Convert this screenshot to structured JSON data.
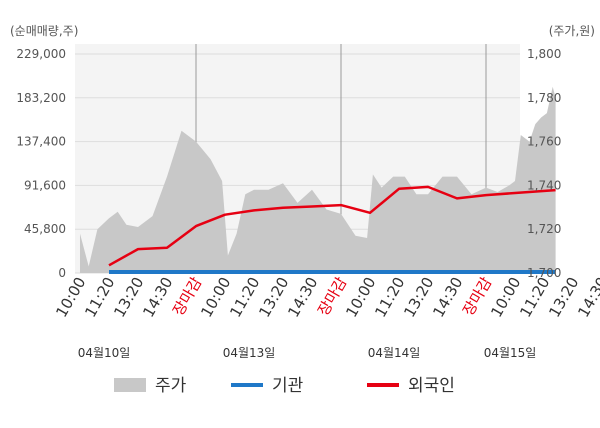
{
  "chart_data": {
    "type": "area+line",
    "left_axis": {
      "label": "(순매매량,주)",
      "ticks": [
        "229,000",
        "183,200",
        "137,400",
        "91,600",
        "45,800",
        "0"
      ],
      "tick_values": [
        229000,
        183200,
        137400,
        91600,
        45800,
        0
      ],
      "range": [
        0,
        229000
      ]
    },
    "right_axis": {
      "label": "(주가,원)",
      "ticks": [
        "1,800",
        "1,780",
        "1,760",
        "1,740",
        "1,720",
        "1,700"
      ],
      "tick_values": [
        1800,
        1780,
        1760,
        1740,
        1720,
        1700
      ],
      "range": [
        1700,
        1800
      ]
    },
    "x_tick_labels": [
      "10:00",
      "11:20",
      "13:20",
      "14:30",
      "장마감",
      "10:00",
      "11:20",
      "13:20",
      "14:30",
      "장마감",
      "10:00",
      "11:20",
      "13:20",
      "14:30",
      "장마감",
      "10:00",
      "11:20",
      "13:20",
      "14:30"
    ],
    "close_label": "장마감",
    "dates": [
      "04월10일",
      "04월13일",
      "04월14일",
      "04월15일"
    ],
    "day_boundaries": [
      4,
      9,
      14
    ],
    "grid": true,
    "legend_position": "bottom",
    "series": [
      {
        "name": "주가",
        "axis": "right",
        "style": "area",
        "color": "#c8c8c8",
        "x": [
          0,
          0.3,
          0.6,
          1,
          1.3,
          1.6,
          2,
          2.5,
          3,
          3.5,
          4,
          4.5,
          4.9,
          5.1,
          5.4,
          5.7,
          6,
          6.5,
          7,
          7.5,
          8,
          8.5,
          9,
          9.5,
          9.9,
          10.1,
          10.4,
          10.8,
          11.2,
          11.6,
          12,
          12.5,
          13,
          13.5,
          14,
          14.4,
          14.8,
          15,
          15.2,
          15.5,
          15.7,
          15.9,
          16.1,
          16.3,
          16.4
        ],
        "values": [
          1718,
          1703,
          1720,
          1725,
          1728,
          1722,
          1721,
          1726,
          1744,
          1765,
          1760,
          1752,
          1742,
          1708,
          1718,
          1736,
          1738,
          1738,
          1741,
          1732,
          1738,
          1729,
          1727,
          1717,
          1716,
          1745,
          1739,
          1744,
          1744,
          1736,
          1736,
          1744,
          1744,
          1736,
          1739,
          1737,
          1740,
          1742,
          1763,
          1760,
          1768,
          1771,
          1773,
          1785,
          1780
        ]
      },
      {
        "name": "기관",
        "axis": "left",
        "style": "line",
        "color": "#1f78c8",
        "x": [
          1,
          16.4
        ],
        "values": [
          1000,
          1000
        ]
      },
      {
        "name": "외국인",
        "axis": "left",
        "style": "line",
        "color": "#e60012",
        "x": [
          1,
          2,
          3,
          4,
          5,
          6,
          7,
          8,
          9,
          10,
          11,
          12,
          13,
          14,
          15,
          16.4
        ],
        "values": [
          8000,
          25000,
          26500,
          49000,
          61000,
          65500,
          68200,
          69500,
          71000,
          63000,
          88000,
          90000,
          78000,
          81500,
          83700,
          86700
        ]
      }
    ]
  }
}
